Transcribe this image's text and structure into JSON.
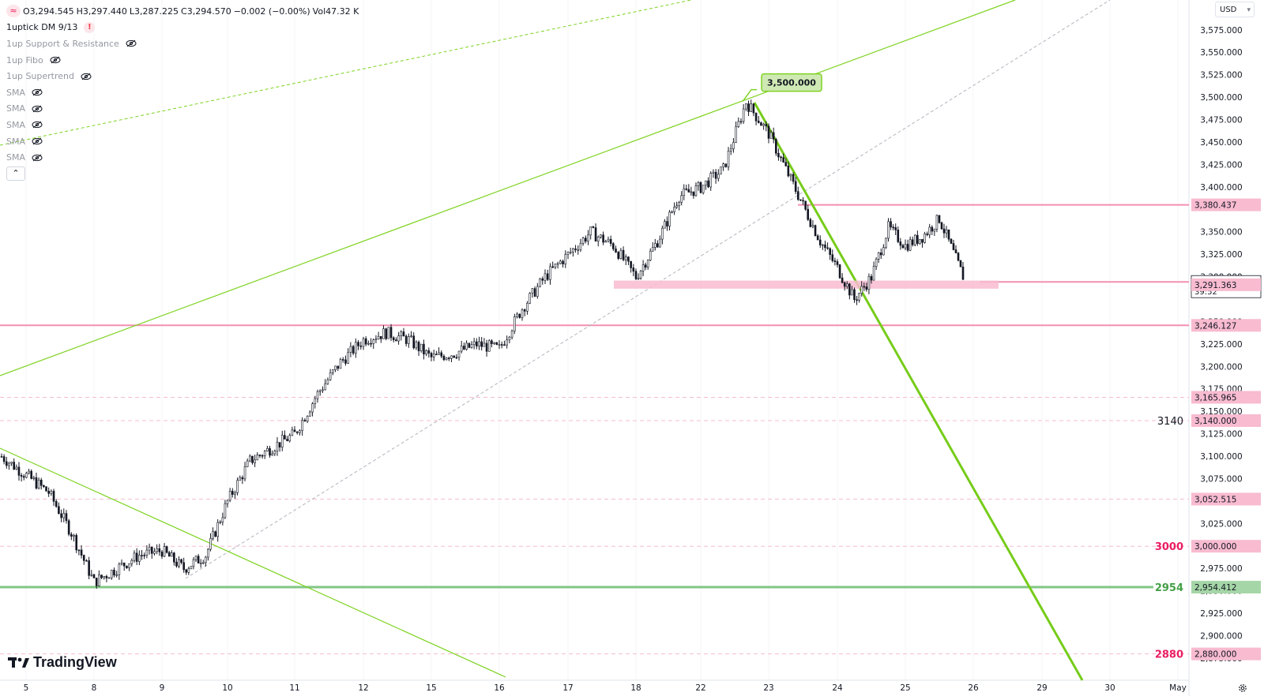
{
  "header": {
    "symbol_icon": "tilde-logo-icon",
    "open": "O3,294.545",
    "high": "H3,297.440",
    "low": "L3,287.225",
    "close": "C3,294.570",
    "change": "−0.002 (−0.00%)",
    "volume": "Vol47.32 K",
    "currency": "USD"
  },
  "indicators": [
    {
      "name": "1uptick DM 9/13",
      "status": "warning"
    },
    {
      "name": "1up Support & Resistance",
      "status": "hidden"
    },
    {
      "name": "1up Fibo",
      "status": "hidden"
    },
    {
      "name": "1up Supertrend",
      "status": "hidden"
    },
    {
      "name": "SMA",
      "status": "hidden"
    },
    {
      "name": "SMA",
      "status": "hidden"
    },
    {
      "name": "SMA",
      "status": "hidden"
    },
    {
      "name": "SMA",
      "status": "hidden"
    },
    {
      "name": "SMA",
      "status": "hidden"
    }
  ],
  "branding": {
    "name": "TradingView"
  },
  "colors": {
    "up": "#131722",
    "down": "#131722",
    "support_pink": "#f48fb1",
    "trend_green": "#7ed321",
    "level_green": "#81c784",
    "label_red": "#e91e63",
    "label_green": "#43a047"
  },
  "chart_data": {
    "type": "candlestick",
    "price_axis": {
      "ticks": [
        "3,575.000",
        "3,550.000",
        "3,525.000",
        "3,500.000",
        "3,475.000",
        "3,450.000",
        "3,425.000",
        "3,400.000",
        "3,350.000",
        "3,325.000",
        "3,300.000",
        "3,250.000",
        "3,225.000",
        "3,200.000",
        "3,175.000",
        "3,150.000",
        "3,125.000",
        "3,100.000",
        "3,075.000",
        "3,050.000",
        "3,025.000",
        "3,000.000",
        "2,975.000",
        "2,950.000",
        "2,925.000",
        "2,900.000",
        "2,875.000"
      ],
      "range": [
        2868,
        3600
      ]
    },
    "time_axis": {
      "ticks": [
        "5",
        "8",
        "9",
        "10",
        "11",
        "12",
        "15",
        "16",
        "17",
        "18",
        "22",
        "23",
        "24",
        "25",
        "26",
        "29",
        "30",
        "May"
      ]
    },
    "price_labels": [
      {
        "value": "3,380.437",
        "price": 3380.437,
        "style": "pink"
      },
      {
        "value": "3,294.570",
        "price": 3294.57,
        "style": "current",
        "countdown": "39:52"
      },
      {
        "value": "3,291.363",
        "price": 3291.363,
        "style": "pink"
      },
      {
        "value": "3,246.127",
        "price": 3246.127,
        "style": "pink"
      },
      {
        "value": "3,165.965",
        "price": 3165.965,
        "style": "pink"
      },
      {
        "value": "3,140.000",
        "price": 3140,
        "style": "pink",
        "tag": "3140",
        "tag_color": "dark"
      },
      {
        "value": "3,052.515",
        "price": 3052.515,
        "style": "pink"
      },
      {
        "value": "3,000.000",
        "price": 3000,
        "style": "pink",
        "tag": "3000",
        "tag_color": "red"
      },
      {
        "value": "2,954.412",
        "price": 2954.412,
        "style": "green",
        "tag": "2954",
        "tag_color": "green"
      },
      {
        "value": "2,880.000",
        "price": 2880,
        "style": "pink",
        "tag": "2880",
        "tag_color": "red"
      }
    ],
    "horizontal_levels": [
      {
        "price": 3246.127,
        "kind": "solid-pink"
      },
      {
        "price": 2954.412,
        "kind": "solid-green"
      },
      {
        "price": 3165.965,
        "kind": "dashed-pink"
      },
      {
        "price": 3140,
        "kind": "dashed-pink"
      },
      {
        "price": 3052.515,
        "kind": "dashed-pink"
      },
      {
        "price": 3000,
        "kind": "dashed-pink"
      },
      {
        "price": 2880,
        "kind": "dashed-pink"
      },
      {
        "price": 3380.437,
        "kind": "segment-pink"
      },
      {
        "price": 3294.57,
        "kind": "segment-pink"
      }
    ],
    "support_zone": {
      "price_low": 3287,
      "price_high": 3296
    },
    "callout": {
      "text": "3,500.000",
      "price": 3500
    },
    "close_path": [
      {
        "x": "5",
        "price": 3100
      },
      {
        "x": "5",
        "price": 3060
      },
      {
        "x": "5",
        "price": 3015
      },
      {
        "x": "8",
        "price": 2960
      },
      {
        "x": "8",
        "price": 2975
      },
      {
        "x": "8",
        "price": 2990
      },
      {
        "x": "9",
        "price": 2995
      },
      {
        "x": "9",
        "price": 2975
      },
      {
        "x": "9",
        "price": 2990
      },
      {
        "x": "10",
        "price": 3050
      },
      {
        "x": "10",
        "price": 3095
      },
      {
        "x": "10",
        "price": 3110
      },
      {
        "x": "11",
        "price": 3125
      },
      {
        "x": "11",
        "price": 3170
      },
      {
        "x": "11",
        "price": 3205
      },
      {
        "x": "12",
        "price": 3230
      },
      {
        "x": "12",
        "price": 3238
      },
      {
        "x": "12",
        "price": 3230
      },
      {
        "x": "15",
        "price": 3210
      },
      {
        "x": "15",
        "price": 3215
      },
      {
        "x": "15",
        "price": 3225
      },
      {
        "x": "16",
        "price": 3220
      },
      {
        "x": "16",
        "price": 3265
      },
      {
        "x": "16",
        "price": 3300
      },
      {
        "x": "17",
        "price": 3325
      },
      {
        "x": "17",
        "price": 3350
      },
      {
        "x": "17",
        "price": 3335
      },
      {
        "x": "18",
        "price": 3300
      },
      {
        "x": "18",
        "price": 3340
      },
      {
        "x": "18",
        "price": 3390
      },
      {
        "x": "22",
        "price": 3400
      },
      {
        "x": "22",
        "price": 3420
      },
      {
        "x": "22",
        "price": 3495
      },
      {
        "x": "23",
        "price": 3460
      },
      {
        "x": "23",
        "price": 3420
      },
      {
        "x": "23",
        "price": 3380
      },
      {
        "x": "23",
        "price": 3340
      },
      {
        "x": "24",
        "price": 3310
      },
      {
        "x": "24",
        "price": 3275
      },
      {
        "x": "24",
        "price": 3300
      },
      {
        "x": "24",
        "price": 3355
      },
      {
        "x": "25",
        "price": 3335
      },
      {
        "x": "25",
        "price": 3345
      },
      {
        "x": "25",
        "price": 3365
      },
      {
        "x": "25",
        "price": 3294.57
      }
    ]
  }
}
